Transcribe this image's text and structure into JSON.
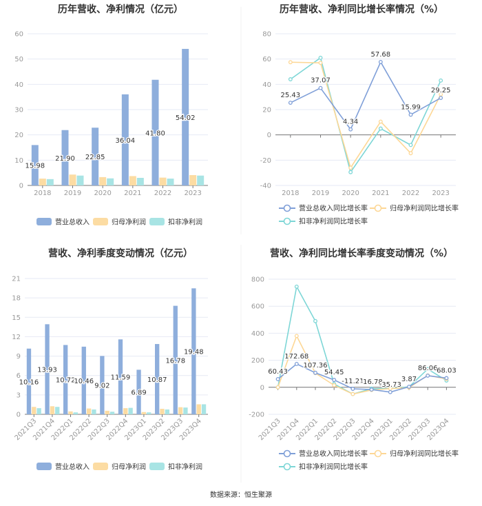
{
  "colors": {
    "revenue": "#8eaedc",
    "net": "#fcdca3",
    "deducted": "#a8e4e4",
    "line_revenue": "#7f9fd8",
    "line_net": "#fdd795",
    "line_deducted": "#7dd6d6",
    "grid": "#e6e9f4",
    "axis": "#777"
  },
  "source": "数据来源：恒生聚源",
  "chart_data": [
    {
      "type": "bar",
      "title": "历年营收、净利情况（亿元）",
      "categories": [
        "2018",
        "2019",
        "2020",
        "2021",
        "2022",
        "2023"
      ],
      "ylim": [
        0,
        60
      ],
      "yticks": [
        0,
        10,
        20,
        30,
        40,
        50,
        60
      ],
      "series": [
        {
          "name": "营业总收入",
          "values": [
            15.98,
            21.9,
            22.85,
            36.04,
            41.8,
            54.02
          ],
          "labels": [
            "15.98",
            "21.90",
            "22.85",
            "36.04",
            "41.80",
            "54.02"
          ]
        },
        {
          "name": "归母净利润",
          "values": [
            2.7,
            4.3,
            3.3,
            3.7,
            3.1,
            4.1
          ]
        },
        {
          "name": "扣非净利润",
          "values": [
            2.5,
            3.9,
            2.8,
            3.0,
            2.7,
            3.9
          ]
        }
      ],
      "legend": "bottom"
    },
    {
      "type": "line",
      "title": "历年营收、净利同比增长率情况（%）",
      "categories": [
        "2018",
        "2019",
        "2020",
        "2021",
        "2022",
        "2023"
      ],
      "ylim": [
        -40,
        80
      ],
      "yticks": [
        -40,
        -20,
        0,
        20,
        40,
        60,
        80
      ],
      "series": [
        {
          "name": "营业总收入同比增长率",
          "values": [
            25.43,
            37.07,
            4.34,
            57.68,
            15.99,
            29.25
          ],
          "labels": [
            "25.43",
            "37.07",
            "4.34",
            "57.68",
            "15.99",
            "29.25"
          ]
        },
        {
          "name": "归母净利润同比增长率",
          "values": [
            57.5,
            57,
            -26,
            10.5,
            -14.5,
            32
          ]
        },
        {
          "name": "扣非净利润同比增长率",
          "values": [
            44,
            61,
            -29.5,
            5,
            -8,
            43
          ]
        }
      ],
      "legend": "bottom"
    },
    {
      "type": "bar",
      "title": "营收、净利季度变动情况（亿元）",
      "categories": [
        "2021Q3",
        "2021Q4",
        "2022Q1",
        "2022Q2",
        "2022Q3",
        "2022Q4",
        "2023Q1",
        "2023Q2",
        "2023Q3",
        "2023Q4"
      ],
      "ylim": [
        0,
        21
      ],
      "yticks": [
        0,
        3,
        6,
        9,
        12,
        15,
        18,
        21
      ],
      "series": [
        {
          "name": "营业总收入",
          "values": [
            10.16,
            13.93,
            10.72,
            10.46,
            9.02,
            11.59,
            6.89,
            10.87,
            16.78,
            19.48
          ],
          "labels": [
            "10.16",
            "13.93",
            "10.72",
            "10.46",
            "9.02",
            "11.59",
            "6.89",
            "10.87",
            "16.78",
            "19.48"
          ]
        },
        {
          "name": "归母净利润",
          "values": [
            1.15,
            1.25,
            0.45,
            0.9,
            0.55,
            0.95,
            0.35,
            0.85,
            1.1,
            1.55
          ]
        },
        {
          "name": "扣非净利润",
          "values": [
            0.95,
            1.15,
            0.3,
            0.75,
            0.4,
            1.0,
            0.3,
            0.75,
            1.05,
            1.55
          ]
        }
      ],
      "legend": "bottom"
    },
    {
      "type": "line",
      "title": "营收、净利同比增长率季度变动情况（%）",
      "categories": [
        "2021Q3",
        "2021Q4",
        "2022Q1",
        "2022Q2",
        "2022Q3",
        "2022Q4",
        "2023Q1",
        "2023Q2",
        "2023Q3",
        "2023Q4"
      ],
      "ylim": [
        -200,
        800
      ],
      "yticks": [
        -200,
        0,
        200,
        400,
        600,
        800
      ],
      "series": [
        {
          "name": "营业总收入同比增长率",
          "values": [
            60.43,
            172.68,
            107.36,
            54.45,
            -11.21,
            -16.78,
            -35.73,
            3.87,
            86.06,
            68.03
          ],
          "labels": [
            "60.43",
            "172.68",
            "107.36",
            "54.45",
            "-11.21",
            "-16.78",
            "-35.73",
            "3.87",
            "86.06",
            "68.03"
          ]
        },
        {
          "name": "归母净利润同比增长率",
          "values": [
            0,
            380,
            105,
            15,
            -50,
            -20,
            -10,
            -2,
            88,
            62
          ]
        },
        {
          "name": "扣非净利润同比增长率",
          "values": [
            0,
            745,
            490,
            25,
            -50,
            -10,
            -8,
            3,
            135,
            50
          ]
        }
      ],
      "legend": "bottom"
    }
  ]
}
